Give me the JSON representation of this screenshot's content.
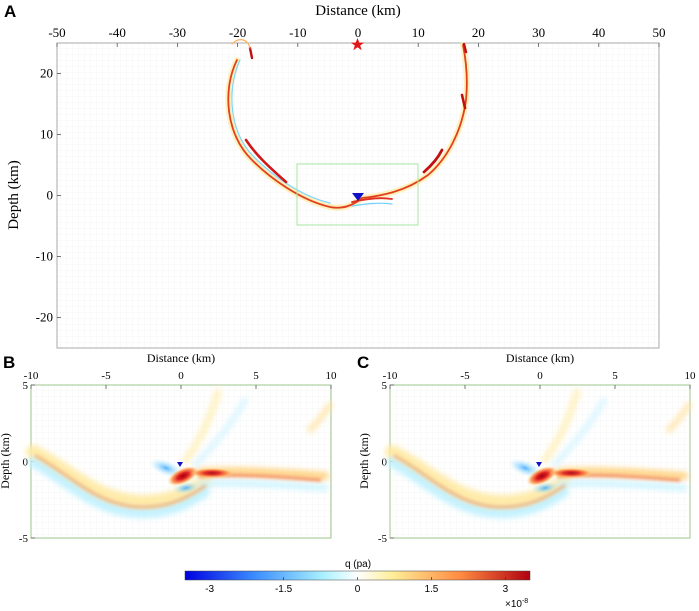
{
  "chart_data": [
    {
      "panel": "A",
      "type": "heatmap",
      "xlabel": "Distance (km)",
      "ylabel": "Depth (km)",
      "xlim": [
        -50,
        50
      ],
      "ylim": [
        -25,
        25
      ],
      "xticks": [
        -50,
        -40,
        -30,
        -20,
        -10,
        0,
        10,
        20,
        30,
        40,
        50
      ],
      "yticks": [
        20,
        10,
        0,
        -10,
        -20
      ],
      "source_marker": {
        "x": 0,
        "y": 26,
        "symbol": "star",
        "color": "#e01818"
      },
      "receiver_marker": {
        "x": 0,
        "y": 0,
        "symbol": "triangle",
        "color": "#1010c8"
      },
      "inset_box": {
        "x": [
          -10,
          10
        ],
        "y": [
          -5,
          5
        ]
      },
      "grid": true
    },
    {
      "panel": "B",
      "type": "heatmap",
      "xlabel": "Distance (km)",
      "ylabel": "Depth (km)",
      "xlim": [
        -10,
        10
      ],
      "ylim": [
        -5,
        5
      ],
      "xticks": [
        -10,
        -5,
        0,
        5,
        10
      ],
      "yticks": [
        5,
        0,
        -5
      ],
      "receiver_marker": {
        "x": 0,
        "y": 0,
        "symbol": "triangle",
        "color": "#1010c8"
      }
    },
    {
      "panel": "C",
      "type": "heatmap",
      "xlabel": "Distance (km)",
      "ylabel": "Depth (km)",
      "xlim": [
        -10,
        10
      ],
      "ylim": [
        -5,
        5
      ],
      "xticks": [
        -10,
        -5,
        0,
        5,
        10
      ],
      "yticks": [
        5,
        0,
        -5
      ],
      "receiver_marker": {
        "x": 0,
        "y": 0,
        "symbol": "triangle",
        "color": "#1010c8"
      }
    }
  ],
  "colorbar": {
    "label": "q (pa)",
    "range": [
      -3.5,
      3.5
    ],
    "ticks": [
      -3,
      -1.5,
      0,
      1.5,
      3
    ],
    "tick_labels": [
      "-3",
      "-1.5",
      "0",
      "1.5",
      "3"
    ],
    "multiplier": "×10",
    "exponent": "-8",
    "colormap": [
      "#0000e0",
      "#3a8cff",
      "#a8f0ff",
      "#ffffff",
      "#ffee9a",
      "#ff8a40",
      "#b00010"
    ]
  },
  "labels": {
    "panel_a": "A",
    "panel_b": "B",
    "panel_c": "C"
  },
  "colors": {
    "frame": "#9ec48e",
    "frame_a": "#aaaaaa",
    "inset": "#a8e6a0"
  }
}
